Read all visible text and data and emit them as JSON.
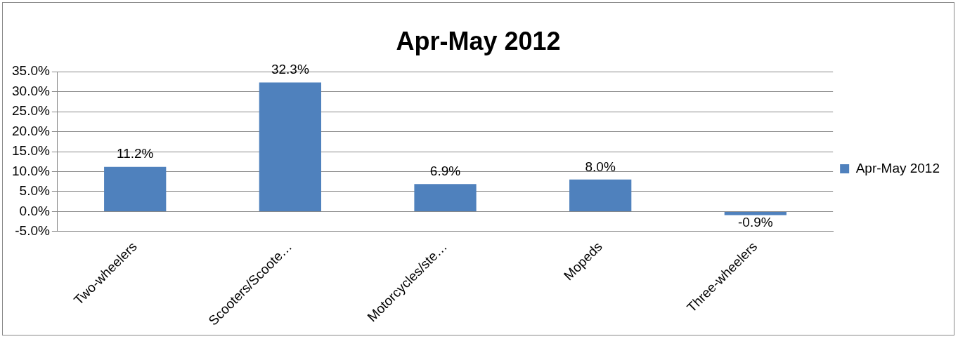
{
  "chart_data": {
    "type": "bar",
    "title": "Apr-May 2012",
    "categories": [
      "Two-wheelers",
      "Scooters/Scoote…",
      "Motorcycles/ste…",
      "Mopeds",
      "Three-wheelers"
    ],
    "series": [
      {
        "name": "Apr-May 2012",
        "color": "#4f81bd",
        "values": [
          11.2,
          32.3,
          6.9,
          8.0,
          -0.9
        ],
        "value_labels": [
          "11.2%",
          "32.3%",
          "6.9%",
          "8.0%",
          "-0.9%"
        ]
      }
    ],
    "ylim": [
      -5,
      35
    ],
    "yticks": [
      {
        "value": -5,
        "label": "-5.0%"
      },
      {
        "value": 0,
        "label": "0.0%"
      },
      {
        "value": 5,
        "label": "5.0%"
      },
      {
        "value": 10,
        "label": "10.0%"
      },
      {
        "value": 15,
        "label": "15.0%"
      },
      {
        "value": 20,
        "label": "20.0%"
      },
      {
        "value": 25,
        "label": "25.0%"
      },
      {
        "value": 30,
        "label": "30.0%"
      },
      {
        "value": 35,
        "label": "35.0%"
      }
    ],
    "grid": "y",
    "legend": "right"
  }
}
